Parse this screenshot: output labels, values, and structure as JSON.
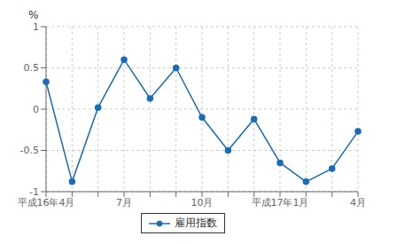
{
  "chart_data": {
    "type": "line",
    "categories": [
      "平成16年4月",
      null,
      null,
      "7月",
      null,
      null,
      "10月",
      null,
      null,
      "平成17年1月",
      null,
      null,
      "4月"
    ],
    "series": [
      {
        "name": "雇用指数",
        "color": "#1b6bb5",
        "marker": "circle",
        "values": [
          0.33,
          -0.88,
          0.02,
          0.6,
          0.13,
          0.5,
          -0.1,
          -0.5,
          -0.12,
          -0.65,
          -0.88,
          -0.72,
          -0.27
        ]
      }
    ],
    "y_label": "%",
    "ylim": [
      -1.0,
      1.0
    ],
    "yticks": [
      -1,
      -0.5,
      0,
      0.5,
      1
    ],
    "grid": true,
    "legend": "bottom"
  }
}
